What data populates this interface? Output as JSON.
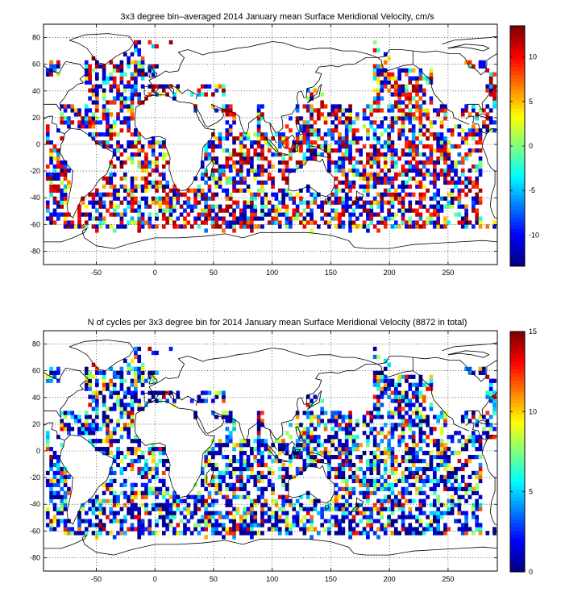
{
  "chart_data": [
    {
      "type": "heatmap",
      "title": "3x3 degree bin–averaged 2014 January mean Surface Meridional Velocity, cm/s",
      "xlabel": "",
      "ylabel": "",
      "xlim": [
        -95,
        292
      ],
      "ylim": [
        -90,
        90
      ],
      "x_ticks": [
        -50,
        0,
        50,
        100,
        150,
        200,
        250
      ],
      "y_ticks": [
        -80,
        -60,
        -40,
        -20,
        0,
        20,
        40,
        60,
        80
      ],
      "grid": true,
      "colormap": "jet",
      "clim": [
        -13.5,
        13.5
      ],
      "colorbar_ticks": [
        -10,
        -5,
        0,
        5,
        10
      ],
      "bin_size_deg": 3
    },
    {
      "type": "heatmap",
      "title": "N of cycles per 3x3 degree bin for 2014 January mean Surface Meridional Velocity (8872 in total)",
      "xlabel": "",
      "ylabel": "",
      "xlim": [
        -95,
        292
      ],
      "ylim": [
        -90,
        90
      ],
      "x_ticks": [
        -50,
        0,
        50,
        100,
        150,
        200,
        250
      ],
      "y_ticks": [
        -80,
        -60,
        -40,
        -20,
        0,
        20,
        40,
        60,
        80
      ],
      "grid": true,
      "colormap": "jet",
      "clim": [
        0,
        15
      ],
      "colorbar_ticks": [
        0,
        5,
        10,
        15
      ],
      "bin_size_deg": 3
    }
  ]
}
